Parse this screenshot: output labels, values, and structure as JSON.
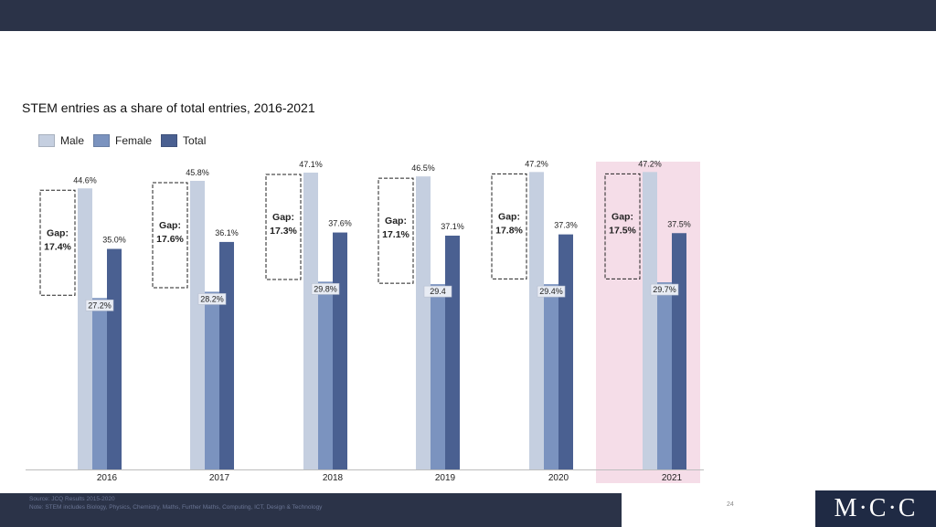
{
  "colors": {
    "male": "#c5cfe0",
    "female": "#7b93bf",
    "total": "#4a6091",
    "highlight": "#f5dde8",
    "band": "#2b3348"
  },
  "footer": {
    "source": "Source: JCQ Results 2015-2020",
    "note": "Note: STEM includes Biology, Physics, Chemistry, Maths, Further Maths, Computing, ICT, Design & Technology",
    "page_number": "24",
    "logo_text": "M·C·C"
  },
  "chart_data": {
    "type": "bar",
    "title": "STEM entries as a share of total entries, 2016-2021",
    "categories": [
      "2016",
      "2017",
      "2018",
      "2019",
      "2020",
      "2021"
    ],
    "series": [
      {
        "name": "Male",
        "values": [
          44.6,
          45.8,
          47.1,
          46.5,
          47.2,
          47.2
        ],
        "labels": [
          "44.6%",
          "45.8%",
          "47.1%",
          "46.5%",
          "47.2%",
          "47.2%"
        ]
      },
      {
        "name": "Female",
        "values": [
          27.2,
          28.2,
          29.8,
          29.4,
          29.4,
          29.7
        ],
        "labels": [
          "27.2%",
          "28.2%",
          "29.8%",
          "29.4",
          "29.4%",
          "29.7%"
        ]
      },
      {
        "name": "Total",
        "values": [
          35.0,
          36.1,
          37.6,
          37.1,
          37.3,
          37.5
        ],
        "labels": [
          "35.0%",
          "36.1%",
          "37.6%",
          "37.1%",
          "37.3%",
          "37.5%"
        ]
      }
    ],
    "gap_annotations": [
      {
        "label": "Gap:",
        "value": "17.4%"
      },
      {
        "label": "Gap:",
        "value": "17.6%"
      },
      {
        "label": "Gap:",
        "value": "17.3%"
      },
      {
        "label": "Gap:",
        "value": "17.1%"
      },
      {
        "label": "Gap:",
        "value": "17.8%"
      },
      {
        "label": "Gap:",
        "value": "17.5%"
      }
    ],
    "highlighted_category": "2021",
    "legend": [
      "Male",
      "Female",
      "Total"
    ],
    "legend_position": "top-left",
    "grid": false
  }
}
